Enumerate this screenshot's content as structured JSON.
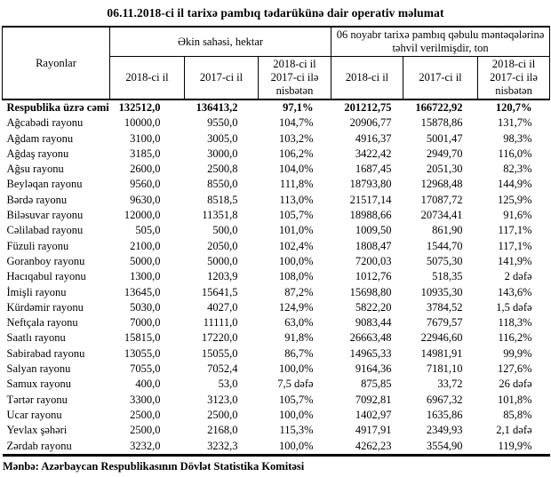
{
  "title": "06.11.2018-ci il tarixə pambıq tədarükünə dair operativ məlumat",
  "table": {
    "corner_header": "Rayonlar",
    "group_headers": [
      "Əkin sahəsi, hektar",
      "06 noyabr tarixə pambıq qəbulu məntəqələrinə təhvil verilmişdir, ton"
    ],
    "sub_headers": [
      "2018-ci il",
      "2017-ci il",
      "2018-ci il 2017-ci ilə nisbətən",
      "2018-ci il",
      "2017-ci il",
      "2018-ci il 2017-ci ilə nisbətən"
    ],
    "rows": [
      {
        "bold": true,
        "cells": [
          "Respublika üzrə cəmi",
          "132512,0",
          "136413,2",
          "97,1%",
          "201212,75",
          "166722,92",
          "120,7%"
        ]
      },
      {
        "bold": false,
        "cells": [
          "Ağcabədi rayonu",
          "10000,0",
          "9550,0",
          "104,7%",
          "20906,77",
          "15878,86",
          "131,7%"
        ]
      },
      {
        "bold": false,
        "cells": [
          "Ağdam rayonu",
          "3100,0",
          "3005,0",
          "103,2%",
          "4916,37",
          "5001,47",
          "98,3%"
        ]
      },
      {
        "bold": false,
        "cells": [
          "Ağdaş rayonu",
          "3185,0",
          "3000,0",
          "106,2%",
          "3422,42",
          "2949,70",
          "116,0%"
        ]
      },
      {
        "bold": false,
        "cells": [
          "Ağsu rayonu",
          "2600,0",
          "2500,8",
          "104,0%",
          "1687,45",
          "2051,30",
          "82,3%"
        ]
      },
      {
        "bold": false,
        "cells": [
          "Beyləqan rayonu",
          "9560,0",
          "8550,0",
          "111,8%",
          "18793,80",
          "12968,48",
          "144,9%"
        ]
      },
      {
        "bold": false,
        "cells": [
          "Bərdə rayonu",
          "9630,0",
          "8518,5",
          "113,0%",
          "21517,14",
          "17087,72",
          "125,9%"
        ]
      },
      {
        "bold": false,
        "cells": [
          "Biləsuvar rayonu",
          "12000,0",
          "11351,8",
          "105,7%",
          "18988,66",
          "20734,41",
          "91,6%"
        ]
      },
      {
        "bold": false,
        "cells": [
          "Cəlilabad rayonu",
          "505,0",
          "500,0",
          "101,0%",
          "1009,50",
          "861,90",
          "117,1%"
        ]
      },
      {
        "bold": false,
        "cells": [
          "Füzuli rayonu",
          "2100,0",
          "2050,0",
          "102,4%",
          "1808,47",
          "1544,70",
          "117,1%"
        ]
      },
      {
        "bold": false,
        "cells": [
          "Goranboy rayonu",
          "5000,0",
          "5000,0",
          "100,0%",
          "7200,03",
          "5075,30",
          "141,9%"
        ]
      },
      {
        "bold": false,
        "cells": [
          "Hacıqabul rayonu",
          "1300,0",
          "1203,9",
          "108,0%",
          "1012,76",
          "518,35",
          "2 dəfə"
        ]
      },
      {
        "bold": false,
        "cells": [
          "İmişli rayonu",
          "13645,0",
          "15641,5",
          "87,2%",
          "15698,80",
          "10935,30",
          "143,6%"
        ]
      },
      {
        "bold": false,
        "cells": [
          "Kürdəmir rayonu",
          "5030,0",
          "4027,0",
          "124,9%",
          "5822,20",
          "3784,52",
          "1,5 dəfə"
        ]
      },
      {
        "bold": false,
        "cells": [
          "Neftçala rayonu",
          "7000,0",
          "11111,0",
          "63,0%",
          "9083,44",
          "7679,57",
          "118,3%"
        ]
      },
      {
        "bold": false,
        "cells": [
          "Saatlı rayonu",
          "15815,0",
          "17220,0",
          "91,8%",
          "26663,48",
          "22946,60",
          "116,2%"
        ]
      },
      {
        "bold": false,
        "cells": [
          "Sabirabad rayonu",
          "13055,0",
          "15055,0",
          "86,7%",
          "14965,33",
          "14981,91",
          "99,9%"
        ]
      },
      {
        "bold": false,
        "cells": [
          "Salyan rayonu",
          "7055,0",
          "7052,4",
          "100,0%",
          "9164,36",
          "7181,10",
          "127,6%"
        ]
      },
      {
        "bold": false,
        "cells": [
          "Samux rayonu",
          "400,0",
          "53,0",
          "7,5 dəfə",
          "875,85",
          "33,72",
          "26 dəfə"
        ]
      },
      {
        "bold": false,
        "cells": [
          "Tərtər rayonu",
          "3300,0",
          "3123,0",
          "105,7%",
          "7092,81",
          "6967,32",
          "101,8%"
        ]
      },
      {
        "bold": false,
        "cells": [
          "Ucar rayonu",
          "2500,0",
          "2500,0",
          "100,0%",
          "1402,97",
          "1635,86",
          "85,8%"
        ]
      },
      {
        "bold": false,
        "cells": [
          "Yevlax şəhəri",
          "2500,0",
          "2168,0",
          "115,3%",
          "4917,91",
          "2349,93",
          "2,1 dəfə"
        ]
      },
      {
        "bold": false,
        "cells": [
          "Zərdab rayonu",
          "3232,0",
          "3232,3",
          "100,0%",
          "4262,23",
          "3554,90",
          "119,9%"
        ]
      }
    ]
  },
  "footer": "Mənbə: Azərbaycan Respublikasının Dövlət Statistika Komitəsi",
  "colors": {
    "text": "#000000",
    "background": "#ffffff",
    "border": "#000000"
  }
}
